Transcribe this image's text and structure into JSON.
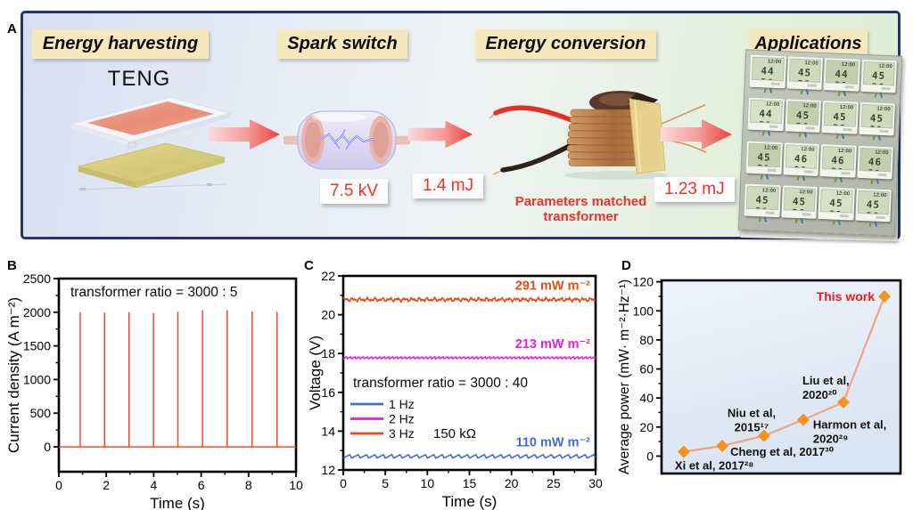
{
  "panels": {
    "a": "A",
    "b": "B",
    "c": "C",
    "d": "D"
  },
  "panel_a": {
    "steps": [
      "Energy harvesting",
      "Spark switch",
      "Energy conversion",
      "Applications"
    ],
    "teng_label": "TENG",
    "spark_voltage": "7.5 kV",
    "energy_before": "1.4 mJ",
    "energy_after": "1.23 mJ",
    "transformer_caption": [
      "Parameters matched",
      "transformer"
    ],
    "applications": {
      "time": "12:00",
      "readings": [
        "44 30",
        "45 31",
        "44 31",
        "45 30",
        "44 31",
        "45 30",
        "45 30",
        "45 31",
        "45 31",
        "46 31",
        "46 31",
        "46 31",
        "45 31",
        "45 30",
        "45 31",
        "45 30"
      ]
    },
    "colors": {
      "accent_red": "#e8352b",
      "label_bg": "#f6e8bd"
    }
  },
  "chart_data": [
    {
      "id": "B",
      "type": "line",
      "annotation": "transformer ratio = 3000 : 5",
      "xlabel": "Time (s)",
      "ylabel": "Current density (A m⁻²)",
      "xlim": [
        0,
        10
      ],
      "ylim": [
        -370,
        2500
      ],
      "xticks": [
        0,
        2,
        4,
        6,
        8,
        10
      ],
      "xminor": [
        1,
        3,
        5,
        7,
        9
      ],
      "yticks": [
        0,
        500,
        1000,
        1500,
        2000,
        2500
      ],
      "yminor": [
        250,
        750,
        1250,
        1750,
        2250
      ],
      "series_color": "#fb3a1c",
      "baseline": 0,
      "spike_times": [
        0.9,
        1.93,
        2.96,
        3.99,
        5.02,
        6.06,
        7.1,
        8.15,
        9.2
      ],
      "spike_heights": [
        2000,
        1995,
        2000,
        1990,
        2005,
        2030,
        2030,
        2010,
        2005
      ]
    },
    {
      "id": "C",
      "type": "line",
      "annotation": "transformer ratio = 3000 :  40",
      "load_label": "150 kΩ",
      "xlabel": "Time (s)",
      "ylabel": "Voltage (V)",
      "xlim": [
        0,
        30
      ],
      "ylim": [
        12,
        22
      ],
      "xticks": [
        0,
        5,
        10,
        15,
        20,
        25,
        30
      ],
      "xminor": [
        2.5,
        7.5,
        12.5,
        17.5,
        22.5,
        27.5
      ],
      "yticks": [
        12,
        14,
        16,
        18,
        20,
        22
      ],
      "yminor": [
        13,
        15,
        17,
        19,
        21
      ],
      "legend_position": "lower-left",
      "series": [
        {
          "name": "1 Hz",
          "color": "#4a66d9",
          "mean": 12.7,
          "ripple": 0.09,
          "freq": 1,
          "wave": "saw",
          "power_label": "110 mW m⁻²"
        },
        {
          "name": "2 Hz",
          "color": "#f118e0",
          "mean": 17.78,
          "ripple": 0.05,
          "freq": 2,
          "wave": "saw",
          "power_label": "213 mW m⁻²"
        },
        {
          "name": "3 Hz",
          "color": "#e64a17",
          "mean": 20.78,
          "ripple": 0.05,
          "freq": 3,
          "wave": "noise",
          "power_label": "291 mW m⁻²"
        }
      ]
    },
    {
      "id": "D",
      "type": "scatter",
      "ylabel": "Average power (mW· m⁻²·Hz⁻¹)",
      "ylim": [
        -12,
        121
      ],
      "yticks": [
        0,
        20,
        40,
        60,
        80,
        100,
        120
      ],
      "yminor": [
        10,
        30,
        50,
        70,
        90,
        110
      ],
      "line_color": "#f5a37e",
      "marker_color": "#f6921e",
      "highlight_color": "#ed1c24",
      "points": [
        {
          "x": 0.093,
          "value": 3,
          "lines": [
            "Xi et al, 2017²⁸"
          ]
        },
        {
          "x": 0.254,
          "value": 7,
          "lines": [
            "Cheng et al, 2017³⁰"
          ]
        },
        {
          "x": 0.429,
          "value": 14,
          "lines": [
            "Niu et al,",
            "2015¹⁷"
          ]
        },
        {
          "x": 0.593,
          "value": 25,
          "lines": [
            "Harmon et al,",
            "2020²⁹"
          ]
        },
        {
          "x": 0.761,
          "value": 37,
          "lines": [
            "Liu et al,",
            "2020²⁰"
          ]
        },
        {
          "x": 0.933,
          "value": 110,
          "lines": [
            "This work"
          ],
          "highlight": true
        }
      ]
    }
  ]
}
